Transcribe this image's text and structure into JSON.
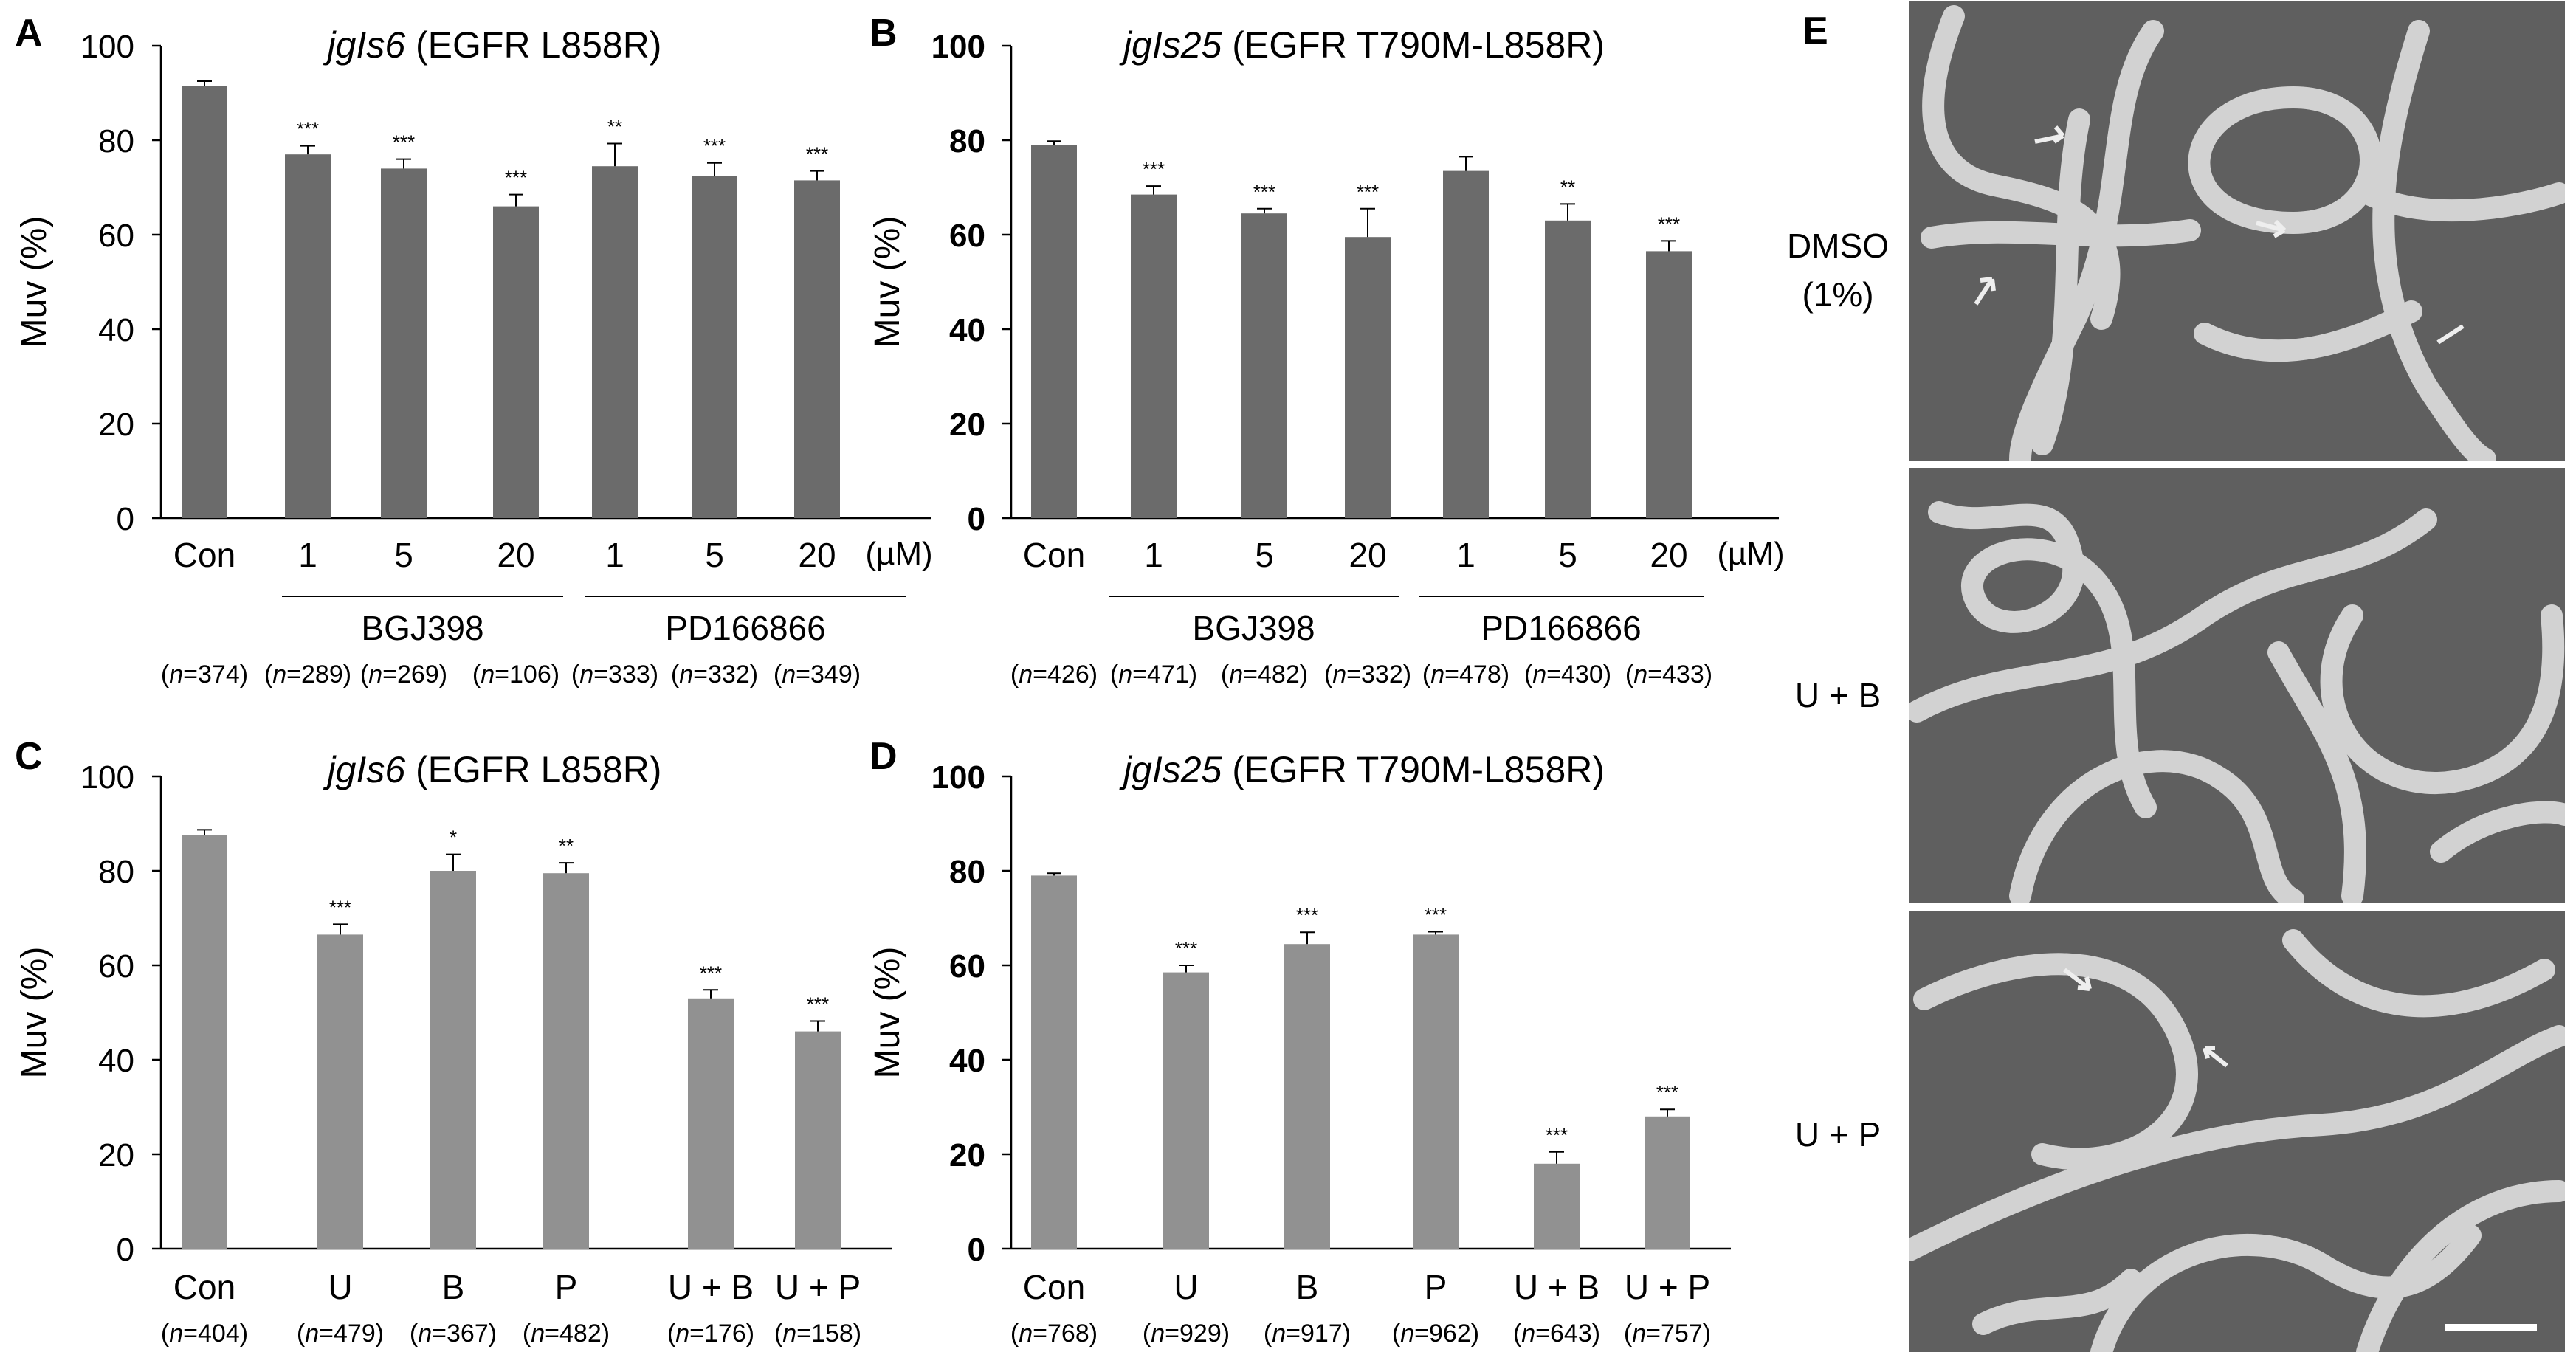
{
  "chart_data": [
    {
      "panel": "A",
      "type": "bar",
      "title_italic": "jgIs6",
      "title_rest": " (EGFR L858R)",
      "ylabel": "Muv (%)",
      "ylim": [
        0,
        100
      ],
      "yticks": [
        0,
        20,
        40,
        60,
        80,
        100
      ],
      "categories": [
        "Con",
        "1",
        "5",
        "20",
        "1",
        "5",
        "20"
      ],
      "unit": "(µM)",
      "values": [
        91.5,
        77,
        74,
        66,
        74.5,
        72.5,
        71.5
      ],
      "errors": [
        1,
        1.8,
        2,
        2.5,
        4.8,
        2.7,
        2
      ],
      "significance": [
        "",
        "***",
        "***",
        "***",
        "**",
        "***",
        "***"
      ],
      "groups": [
        {
          "label": "BGJ398",
          "from": 1,
          "to": 3
        },
        {
          "label": "PD166866",
          "from": 4,
          "to": 6
        }
      ],
      "n": [
        "374",
        "289",
        "269",
        "106",
        "333",
        "332",
        "349"
      ],
      "bar_color": "#6b6b6b"
    },
    {
      "panel": "B",
      "type": "bar",
      "title_italic": "jgIs25",
      "title_rest": " (EGFR T790M-L858R)",
      "ylabel": "Muv (%)",
      "ylim": [
        0,
        100
      ],
      "yticks": [
        0,
        20,
        40,
        60,
        80,
        100
      ],
      "categories": [
        "Con",
        "1",
        "5",
        "20",
        "1",
        "5",
        "20"
      ],
      "unit": "(µM)",
      "values": [
        79,
        68.5,
        64.5,
        59.5,
        73.5,
        63,
        56.5
      ],
      "errors": [
        0.8,
        1.8,
        1,
        6,
        3,
        3.5,
        2.2
      ],
      "significance": [
        "",
        "***",
        "***",
        "***",
        "",
        "**",
        "***"
      ],
      "groups": [
        {
          "label": "BGJ398",
          "from": 1,
          "to": 3
        },
        {
          "label": "PD166866",
          "from": 4,
          "to": 6
        }
      ],
      "n": [
        "426",
        "471",
        "482",
        "332",
        "478",
        "430",
        "433"
      ],
      "bar_color": "#6b6b6b"
    },
    {
      "panel": "C",
      "type": "bar",
      "title_italic": "jgIs6",
      "title_rest": " (EGFR L858R)",
      "ylabel": "Muv (%)",
      "ylim": [
        0,
        100
      ],
      "yticks": [
        0,
        20,
        40,
        60,
        80,
        100
      ],
      "categories": [
        "Con",
        "U",
        "B",
        "P",
        "U + B",
        "U + P"
      ],
      "unit": "",
      "values": [
        87.5,
        66.5,
        80,
        79.5,
        53,
        46
      ],
      "errors": [
        1.2,
        2.2,
        3.5,
        2.2,
        1.8,
        2.2
      ],
      "significance": [
        "",
        "***",
        "*",
        "**",
        "***",
        "***"
      ],
      "groups": [],
      "n": [
        "404",
        "479",
        "367",
        "482",
        "176",
        "158"
      ],
      "bar_color": "#919191"
    },
    {
      "panel": "D",
      "type": "bar",
      "title_italic": "jgIs25",
      "title_rest": " (EGFR T790M-L858R)",
      "ylabel": "Muv (%)",
      "ylim": [
        0,
        100
      ],
      "yticks": [
        0,
        20,
        40,
        60,
        80,
        100
      ],
      "categories": [
        "Con",
        "U",
        "B",
        "P",
        "U + B",
        "U + P"
      ],
      "unit": "",
      "values": [
        79,
        58.5,
        64.5,
        66.5,
        18,
        28
      ],
      "errors": [
        0.5,
        1.5,
        2.5,
        0.6,
        2.5,
        1.5
      ],
      "significance": [
        "",
        "***",
        "***",
        "***",
        "***",
        "***"
      ],
      "groups": [],
      "n": [
        "768",
        "929",
        "917",
        "962",
        "643",
        "757"
      ],
      "bar_color": "#919191"
    }
  ],
  "panel_e": {
    "letter": "E",
    "rows": [
      {
        "label_lines": [
          "DMSO",
          "(1%)"
        ]
      },
      {
        "label_lines": [
          "U + B"
        ]
      },
      {
        "label_lines": [
          "U + P"
        ]
      }
    ]
  },
  "colors": {
    "axis": "#000000",
    "photo_bg": "#5f5f5f",
    "worm": "#d2d2d2"
  }
}
